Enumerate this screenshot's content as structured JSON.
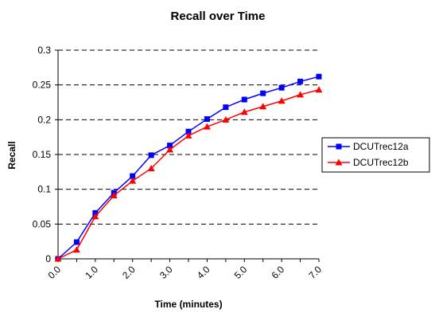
{
  "chart_data": {
    "type": "line",
    "title": "Recall over Time",
    "xlabel": "Time (minutes)",
    "ylabel": "Recall",
    "xlim": [
      0,
      7
    ],
    "ylim": [
      0,
      0.3
    ],
    "x_tick_labels": [
      "0.0",
      "1.0",
      "2.0",
      "3.0",
      "4.0",
      "5.0",
      "6.0",
      "7.0"
    ],
    "y_tick_labels": [
      "0",
      "0.05",
      "0.1",
      "0.15",
      "0.2",
      "0.25",
      "0.3"
    ],
    "x": [
      0,
      0.5,
      1,
      1.5,
      2,
      2.5,
      3,
      3.5,
      4,
      4.5,
      5,
      5.5,
      6,
      6.5,
      7
    ],
    "grid": "horizontal dashed",
    "legend_position": "right",
    "series": [
      {
        "name": "DCUTrec12a",
        "color": "#0000ff",
        "marker": "square",
        "values": [
          0,
          0.024,
          0.066,
          0.095,
          0.119,
          0.149,
          0.163,
          0.183,
          0.201,
          0.218,
          0.229,
          0.238,
          0.246,
          0.255,
          0.262
        ]
      },
      {
        "name": "DCUTrec12b",
        "color": "#ff0000",
        "marker": "triangle",
        "values": [
          0,
          0.013,
          0.061,
          0.091,
          0.112,
          0.13,
          0.157,
          0.177,
          0.19,
          0.2,
          0.211,
          0.219,
          0.227,
          0.236,
          0.243
        ]
      }
    ]
  }
}
